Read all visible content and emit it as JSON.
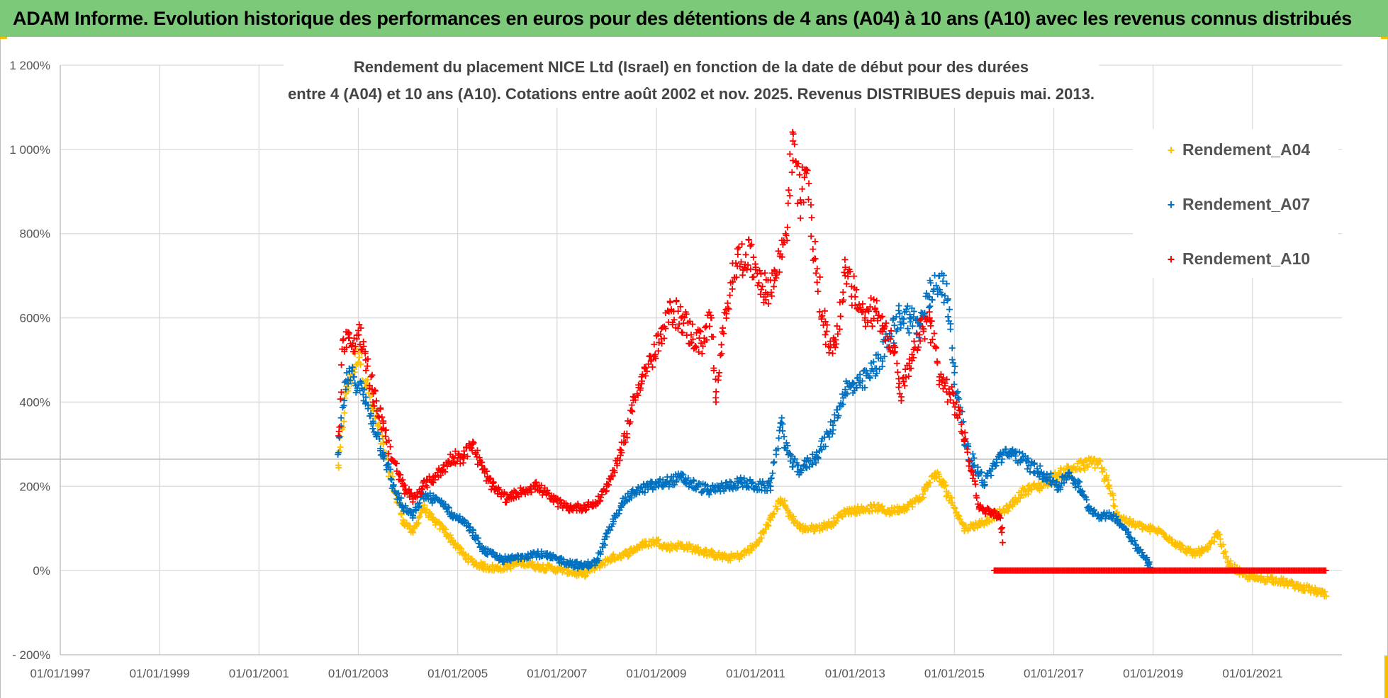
{
  "header": {
    "title": "ADAM Informe. Evolution historique des performances en euros pour des détentions de 4 ans (A04) à 10 ans (A10) avec les revenus connus distribués"
  },
  "colors": {
    "header_bg": "#7dc97a",
    "A04": "#ffc000",
    "A07": "#0070c0",
    "A10": "#ff0000",
    "grid": "#d9d9d9"
  },
  "chart_data": {
    "type": "scatter",
    "title": [
      "Rendement du placement NICE Ltd (Israel) en fonction de la date de début pour des durées",
      "entre 4 (A04) et 10 ans (A10).  Cotations entre août 2002 et nov. 2025.  Revenus DISTRIBUES depuis mai. 2013."
    ],
    "xlabel": "",
    "ylabel": "",
    "x_range": [
      1997.0,
      2022.8
    ],
    "ylim": [
      -200,
      1200
    ],
    "x_ticks": [
      1997,
      1999,
      2001,
      2003,
      2005,
      2007,
      2009,
      2011,
      2013,
      2015,
      2017,
      2019,
      2021
    ],
    "x_tick_labels": [
      "01/01/1997",
      "01/01/1999",
      "01/01/2001",
      "01/01/2003",
      "01/01/2005",
      "01/01/2007",
      "01/01/2009",
      "01/01/2011",
      "01/01/2013",
      "01/01/2015",
      "01/01/2017",
      "01/01/2019",
      "01/01/2021"
    ],
    "y_ticks": [
      -200,
      0,
      200,
      400,
      600,
      800,
      1000,
      1200
    ],
    "y_tick_labels": [
      "- 200%",
      "0%",
      "200%",
      "400%",
      "600%",
      "800%",
      "1 000%",
      "1 200%"
    ],
    "grid": true,
    "legend_position": "top-right",
    "series": [
      {
        "name": "Rendement_A04",
        "color": "#ffc000",
        "points": [
          [
            2002.6,
            250
          ],
          [
            2002.75,
            420
          ],
          [
            2002.9,
            480
          ],
          [
            2003.0,
            520
          ],
          [
            2003.15,
            450
          ],
          [
            2003.3,
            380
          ],
          [
            2003.5,
            300
          ],
          [
            2003.7,
            200
          ],
          [
            2003.9,
            120
          ],
          [
            2004.1,
            90
          ],
          [
            2004.3,
            150
          ],
          [
            2004.5,
            120
          ],
          [
            2004.7,
            100
          ],
          [
            2004.9,
            70
          ],
          [
            2005.1,
            40
          ],
          [
            2005.3,
            20
          ],
          [
            2005.5,
            10
          ],
          [
            2005.8,
            5
          ],
          [
            2006.0,
            10
          ],
          [
            2006.3,
            20
          ],
          [
            2006.6,
            10
          ],
          [
            2006.9,
            5
          ],
          [
            2007.2,
            0
          ],
          [
            2007.5,
            -10
          ],
          [
            2007.8,
            10
          ],
          [
            2008.1,
            30
          ],
          [
            2008.4,
            40
          ],
          [
            2008.7,
            60
          ],
          [
            2009.0,
            70
          ],
          [
            2009.2,
            55
          ],
          [
            2009.5,
            60
          ],
          [
            2009.8,
            50
          ],
          [
            2010.1,
            40
          ],
          [
            2010.4,
            30
          ],
          [
            2010.7,
            35
          ],
          [
            2011.0,
            60
          ],
          [
            2011.3,
            120
          ],
          [
            2011.5,
            170
          ],
          [
            2011.7,
            130
          ],
          [
            2011.9,
            100
          ],
          [
            2012.2,
            100
          ],
          [
            2012.5,
            110
          ],
          [
            2012.8,
            140
          ],
          [
            2013.1,
            145
          ],
          [
            2013.4,
            150
          ],
          [
            2013.7,
            140
          ],
          [
            2014.0,
            150
          ],
          [
            2014.3,
            170
          ],
          [
            2014.6,
            230
          ],
          [
            2014.8,
            200
          ],
          [
            2015.0,
            150
          ],
          [
            2015.2,
            100
          ],
          [
            2015.5,
            110
          ],
          [
            2015.8,
            130
          ],
          [
            2016.1,
            150
          ],
          [
            2016.4,
            190
          ],
          [
            2016.7,
            200
          ],
          [
            2017.0,
            220
          ],
          [
            2017.3,
            240
          ],
          [
            2017.6,
            250
          ],
          [
            2017.9,
            260
          ],
          [
            2018.1,
            200
          ],
          [
            2018.3,
            130
          ],
          [
            2018.6,
            110
          ],
          [
            2018.9,
            100
          ],
          [
            2019.2,
            90
          ],
          [
            2019.5,
            60
          ],
          [
            2019.8,
            40
          ],
          [
            2020.1,
            50
          ],
          [
            2020.3,
            90
          ],
          [
            2020.5,
            20
          ],
          [
            2020.8,
            -10
          ],
          [
            2021.1,
            -20
          ],
          [
            2021.4,
            -20
          ],
          [
            2021.7,
            -30
          ],
          [
            2022.0,
            -40
          ],
          [
            2022.3,
            -50
          ],
          [
            2022.5,
            -60
          ]
        ]
      },
      {
        "name": "Rendement_A07",
        "color": "#0070c0",
        "points": [
          [
            2002.6,
            280
          ],
          [
            2002.75,
            450
          ],
          [
            2002.9,
            460
          ],
          [
            2003.0,
            440
          ],
          [
            2003.15,
            400
          ],
          [
            2003.3,
            350
          ],
          [
            2003.5,
            280
          ],
          [
            2003.7,
            200
          ],
          [
            2003.9,
            150
          ],
          [
            2004.1,
            130
          ],
          [
            2004.3,
            180
          ],
          [
            2004.5,
            170
          ],
          [
            2004.7,
            160
          ],
          [
            2004.9,
            130
          ],
          [
            2005.1,
            120
          ],
          [
            2005.3,
            90
          ],
          [
            2005.5,
            50
          ],
          [
            2005.8,
            30
          ],
          [
            2006.0,
            25
          ],
          [
            2006.3,
            35
          ],
          [
            2006.6,
            40
          ],
          [
            2006.9,
            30
          ],
          [
            2007.2,
            20
          ],
          [
            2007.5,
            10
          ],
          [
            2007.8,
            20
          ],
          [
            2008.0,
            80
          ],
          [
            2008.3,
            160
          ],
          [
            2008.6,
            190
          ],
          [
            2008.9,
            200
          ],
          [
            2009.2,
            210
          ],
          [
            2009.5,
            220
          ],
          [
            2009.8,
            200
          ],
          [
            2010.1,
            190
          ],
          [
            2010.4,
            200
          ],
          [
            2010.7,
            210
          ],
          [
            2011.0,
            200
          ],
          [
            2011.3,
            200
          ],
          [
            2011.5,
            350
          ],
          [
            2011.7,
            260
          ],
          [
            2011.9,
            240
          ],
          [
            2012.2,
            270
          ],
          [
            2012.5,
            330
          ],
          [
            2012.8,
            430
          ],
          [
            2013.1,
            440
          ],
          [
            2013.4,
            480
          ],
          [
            2013.7,
            550
          ],
          [
            2013.9,
            610
          ],
          [
            2014.1,
            600
          ],
          [
            2014.3,
            580
          ],
          [
            2014.5,
            650
          ],
          [
            2014.7,
            700
          ],
          [
            2014.9,
            620
          ],
          [
            2015.0,
            470
          ],
          [
            2015.2,
            310
          ],
          [
            2015.4,
            250
          ],
          [
            2015.6,
            210
          ],
          [
            2015.9,
            270
          ],
          [
            2016.2,
            280
          ],
          [
            2016.5,
            250
          ],
          [
            2016.8,
            230
          ],
          [
            2017.1,
            200
          ],
          [
            2017.3,
            230
          ],
          [
            2017.5,
            200
          ],
          [
            2017.7,
            150
          ],
          [
            2017.9,
            130
          ],
          [
            2018.2,
            130
          ],
          [
            2018.5,
            90
          ],
          [
            2018.7,
            50
          ],
          [
            2018.9,
            20
          ],
          [
            2019.0,
            0
          ]
        ]
      },
      {
        "name": "Rendement_A10",
        "color": "#ff0000",
        "points": [
          [
            2002.6,
            320
          ],
          [
            2002.7,
            550
          ],
          [
            2002.8,
            560
          ],
          [
            2002.9,
            520
          ],
          [
            2003.0,
            570
          ],
          [
            2003.15,
            500
          ],
          [
            2003.3,
            420
          ],
          [
            2003.5,
            350
          ],
          [
            2003.7,
            260
          ],
          [
            2003.9,
            200
          ],
          [
            2004.1,
            170
          ],
          [
            2004.3,
            200
          ],
          [
            2004.5,
            220
          ],
          [
            2004.7,
            240
          ],
          [
            2004.9,
            270
          ],
          [
            2005.1,
            270
          ],
          [
            2005.3,
            300
          ],
          [
            2005.5,
            240
          ],
          [
            2005.7,
            200
          ],
          [
            2006.0,
            170
          ],
          [
            2006.3,
            190
          ],
          [
            2006.6,
            200
          ],
          [
            2006.9,
            170
          ],
          [
            2007.2,
            150
          ],
          [
            2007.5,
            150
          ],
          [
            2007.8,
            160
          ],
          [
            2008.0,
            200
          ],
          [
            2008.3,
            280
          ],
          [
            2008.5,
            380
          ],
          [
            2008.7,
            460
          ],
          [
            2008.9,
            500
          ],
          [
            2009.1,
            550
          ],
          [
            2009.3,
            620
          ],
          [
            2009.5,
            600
          ],
          [
            2009.7,
            560
          ],
          [
            2009.9,
            540
          ],
          [
            2010.1,
            600
          ],
          [
            2010.2,
            400
          ],
          [
            2010.4,
            620
          ],
          [
            2010.6,
            730
          ],
          [
            2010.8,
            750
          ],
          [
            2011.0,
            720
          ],
          [
            2011.2,
            660
          ],
          [
            2011.4,
            700
          ],
          [
            2011.6,
            800
          ],
          [
            2011.75,
            1020
          ],
          [
            2011.9,
            880
          ],
          [
            2012.0,
            950
          ],
          [
            2012.2,
            740
          ],
          [
            2012.4,
            560
          ],
          [
            2012.6,
            530
          ],
          [
            2012.8,
            700
          ],
          [
            2013.0,
            650
          ],
          [
            2013.2,
            600
          ],
          [
            2013.4,
            620
          ],
          [
            2013.6,
            580
          ],
          [
            2013.8,
            520
          ],
          [
            2013.9,
            420
          ],
          [
            2014.1,
            480
          ],
          [
            2014.3,
            560
          ],
          [
            2014.5,
            600
          ],
          [
            2014.7,
            460
          ],
          [
            2014.9,
            420
          ],
          [
            2015.1,
            370
          ],
          [
            2015.3,
            260
          ],
          [
            2015.5,
            150
          ],
          [
            2015.7,
            140
          ],
          [
            2015.9,
            130
          ],
          [
            2016.0,
            60
          ]
        ]
      }
    ],
    "a10_zero_line": {
      "x_start": 2015.8,
      "x_end": 2022.5,
      "y": 0
    }
  }
}
